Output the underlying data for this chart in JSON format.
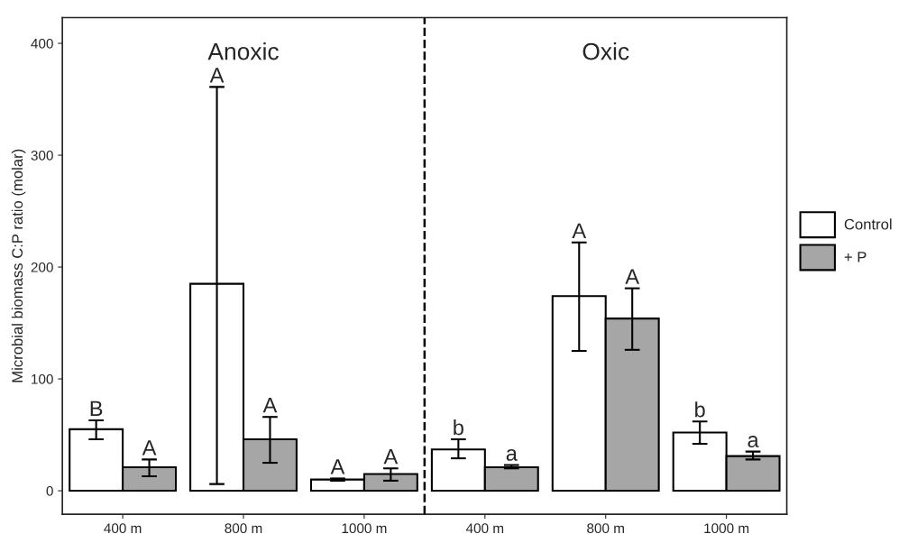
{
  "chart_data": {
    "type": "bar",
    "ylabel": "Microbial biomass C:P ratio (molar)",
    "categories": [
      "400 m",
      "800 m",
      "1000 m",
      "400 m",
      "800 m",
      "1000 m"
    ],
    "series": [
      {
        "name": "Control",
        "color": "#ffffff",
        "values": [
          55,
          185,
          10,
          37,
          174,
          52
        ],
        "errors": [
          [
            46,
            63
          ],
          [
            6,
            361
          ],
          [
            9,
            11
          ],
          [
            29,
            46
          ],
          [
            125,
            222
          ],
          [
            42,
            62
          ]
        ]
      },
      {
        "name": "+ P",
        "color": "#a6a6a6",
        "values": [
          21,
          46,
          15,
          21,
          154,
          31
        ],
        "errors": [
          [
            13,
            28
          ],
          [
            25,
            66
          ],
          [
            9,
            20
          ],
          [
            20,
            23
          ],
          [
            126,
            181
          ],
          [
            28,
            35
          ]
        ]
      }
    ],
    "ylim": [
      -21,
      423
    ],
    "yticks": [
      0,
      100,
      200,
      300,
      400
    ],
    "annotations": [
      "Anoxic",
      "Oxic",
      "B",
      "A",
      "A",
      "b",
      "A",
      "b",
      "A",
      "A",
      "A",
      "a",
      "A",
      "a"
    ],
    "legend": "right",
    "grid": false
  }
}
